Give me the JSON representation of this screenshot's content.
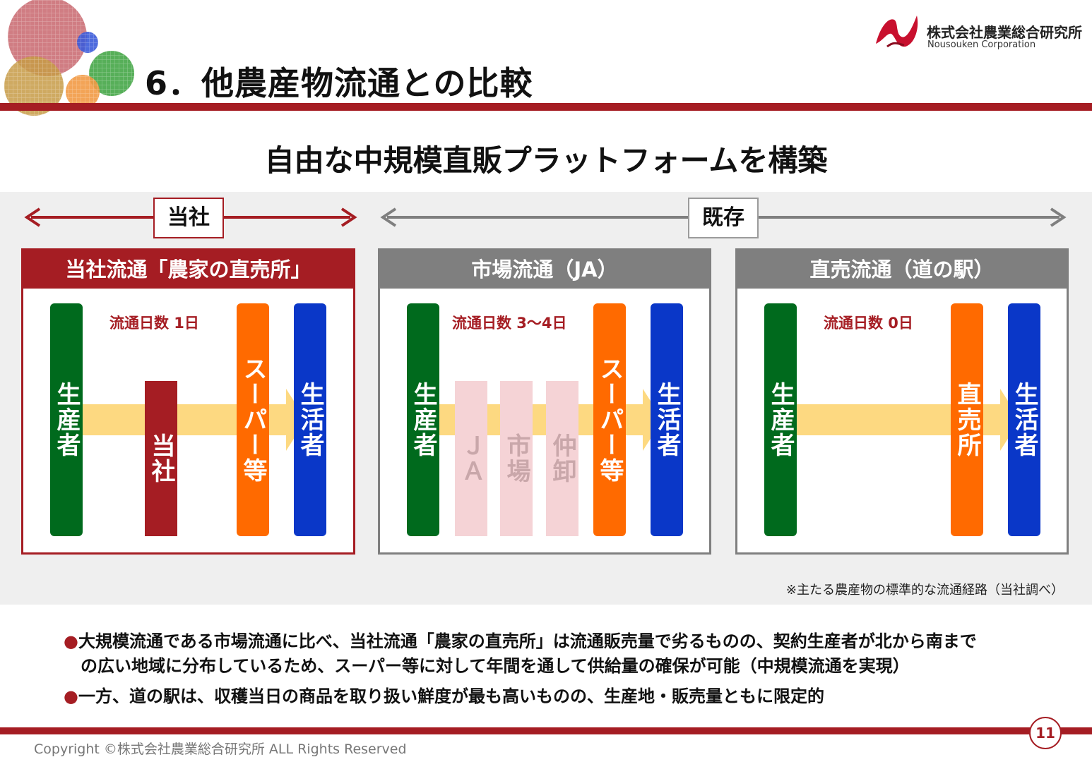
{
  "header": {
    "title": "6．他農産物流通との比較",
    "company_name_jp": "株式会社農業総合研究所",
    "company_name_en": "Nousouken Corporation"
  },
  "subtitle": "自由な中規模直販プラットフォームを構築",
  "groups": {
    "ours": "当社",
    "existing": "既存"
  },
  "panels": {
    "ours": {
      "title": "当社流通「農家の直売所」",
      "days": "流通日数 1日",
      "producer": "生産者",
      "middle": "当社",
      "supermarket": "スーパー等",
      "consumer": "生活者"
    },
    "market": {
      "title": "市場流通（JA）",
      "days": "流通日数 3～4日",
      "producer": "生産者",
      "ja": "ＪＡ",
      "market": "市場",
      "wholesaler": "仲卸",
      "supermarket": "スーパー等",
      "consumer": "生活者"
    },
    "direct": {
      "title": "直売流通（道の駅）",
      "days": "流通日数 0日",
      "producer": "生産者",
      "station": "直売所",
      "consumer": "生活者"
    }
  },
  "note": "※主たる農産物の標準的な流通経路（当社調べ）",
  "bullets": [
    "大規模流通である市場流通に比べ、当社流通「農家の直売所」は流通販売量で劣るものの、契約生産者が北から南まで",
    "の広い地域に分布しているため、スーパー等に対して年間を通して供給量の確保が可能（中規模流通を実現）",
    "一方、道の駅は、収穫当日の商品を取り扱い鮮度が最も高いものの、生産地・販売量ともに限定的"
  ],
  "bullet_marker": "●",
  "page_number": "11",
  "copyright": "Copyright ©株式会社農業総合研究所 ALL Rights Reserved",
  "colors": {
    "brand_red": "#a51d23",
    "gray_header": "#7f7f7f",
    "producer_green": "#006a1d",
    "supermarket_orange": "#ff6a00",
    "consumer_blue": "#0a37c8",
    "flow_arrow": "#fdd981",
    "pink_intermediary": "#f5d3d6"
  }
}
